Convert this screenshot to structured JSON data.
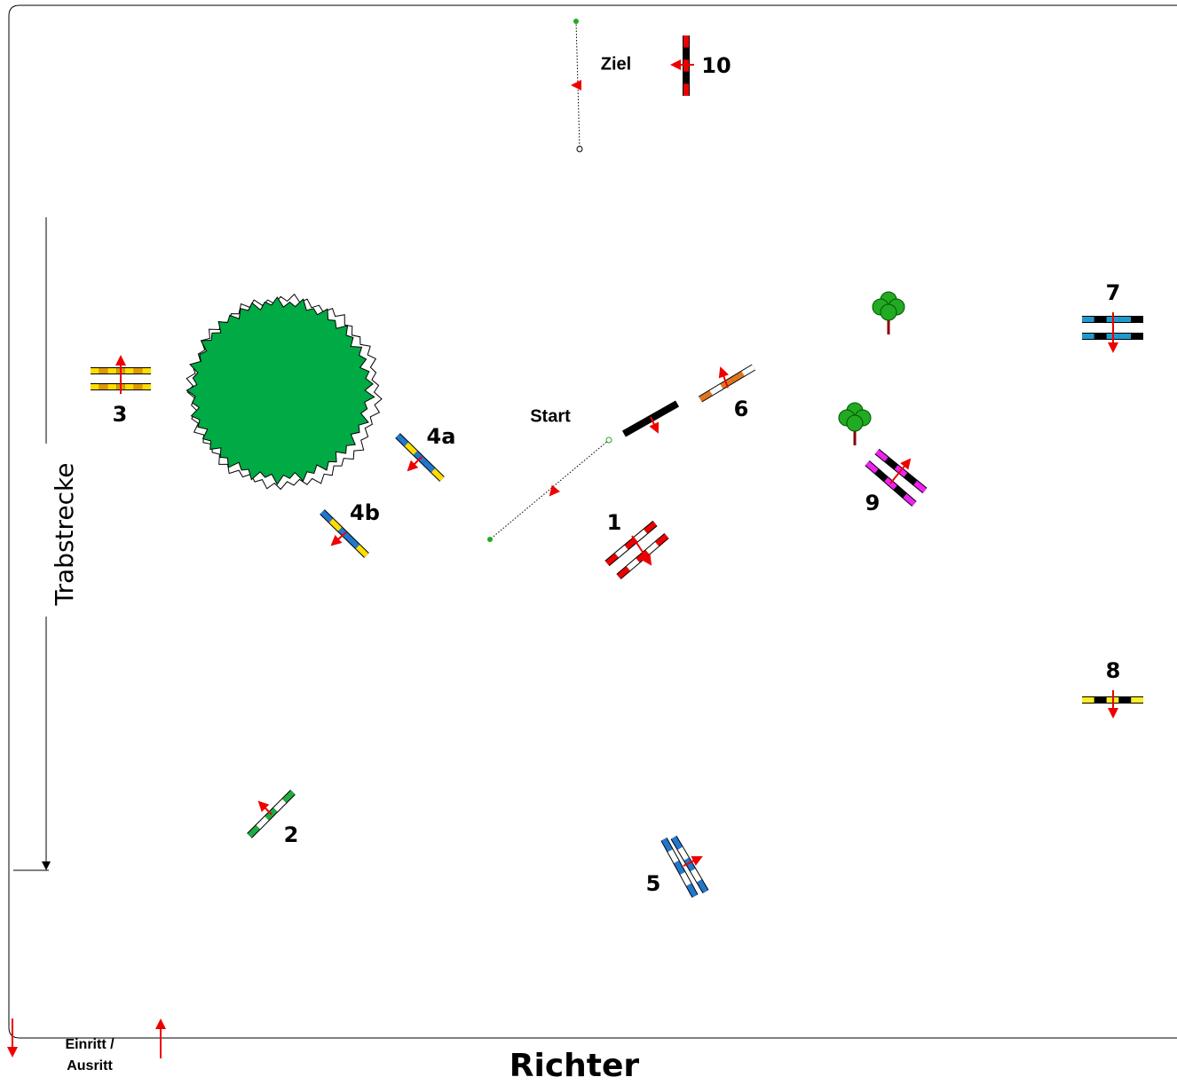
{
  "finish": "Ziel",
  "start": "Start",
  "obstacles": [
    "10",
    "7",
    "3",
    "6",
    "4a",
    "4b",
    "1",
    "9",
    "8",
    "2",
    "5"
  ],
  "trot_track": "Trabstrecke",
  "entrance": [
    "Einritt /",
    "Ausritt"
  ],
  "judge": "Richter"
}
